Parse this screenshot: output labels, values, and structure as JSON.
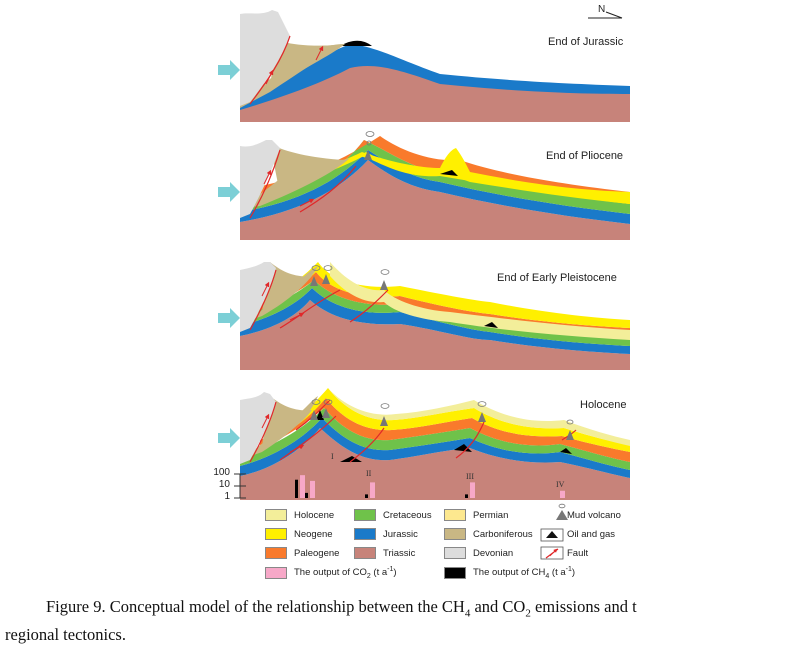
{
  "north_label": "N",
  "stages": [
    {
      "label": "End of Jurassic"
    },
    {
      "label": "End of Pliocene"
    },
    {
      "label": "End of Early Pleistocene"
    },
    {
      "label": "Holocene"
    }
  ],
  "scale_ticks": [
    "100",
    "10",
    "1"
  ],
  "emission_sites": [
    "I",
    "II",
    "III",
    "IV"
  ],
  "emission_bars": [
    {
      "site": "I",
      "co2": 60,
      "ch4": 25
    },
    {
      "site": "I",
      "co2": 20,
      "ch4": 2
    },
    {
      "site": "II",
      "co2": 15,
      "ch4": 1.5
    },
    {
      "site": "III",
      "co2": 15,
      "ch4": 1.5
    },
    {
      "site": "IV",
      "co2": 3,
      "ch4": 0
    }
  ],
  "legend": {
    "holocene": "Holocene",
    "neogene": "Neogene",
    "paleogene": "Paleogene",
    "cretaceous": "Cretaceous",
    "jurassic": "Jurassic",
    "triassic": "Triassic",
    "permian": "Permian",
    "carboniferous": "Carboniferous",
    "devonian": "Devonian",
    "mud_volcano": "Mud volcano",
    "oil_gas": "Oil and gas",
    "fault": "Fault",
    "co2_a": "The output of CO",
    "co2_sub": "2",
    "co2_b": " (t a",
    "co2_sup": "-1",
    "co2_c": ")",
    "ch4_a": "The output of CH",
    "ch4_sub": "4",
    "ch4_b": " (t a",
    "ch4_sup": "-1",
    "ch4_c": ")"
  },
  "colors": {
    "holocene": "#f3ee9a",
    "neogene": "#fff000",
    "paleogene": "#f97a2c",
    "cretaceous": "#6fc24a",
    "jurassic": "#1a7ac9",
    "triassic": "#c7837a",
    "permian": "#fde88f",
    "carboniferous": "#c9b784",
    "devonian": "#dddddd",
    "co2": "#f7a8c8",
    "ch4": "#000000",
    "fault": "#e0282a",
    "arrow": "#7ccfd6"
  },
  "caption": {
    "line1_a": "Figure 9. Conceptual model of the relationship between the CH",
    "line1_sub1": "4",
    "line1_b": " and CO",
    "line1_sub2": "2",
    "line1_c": " emissions and t",
    "line2": "regional tectonics."
  }
}
